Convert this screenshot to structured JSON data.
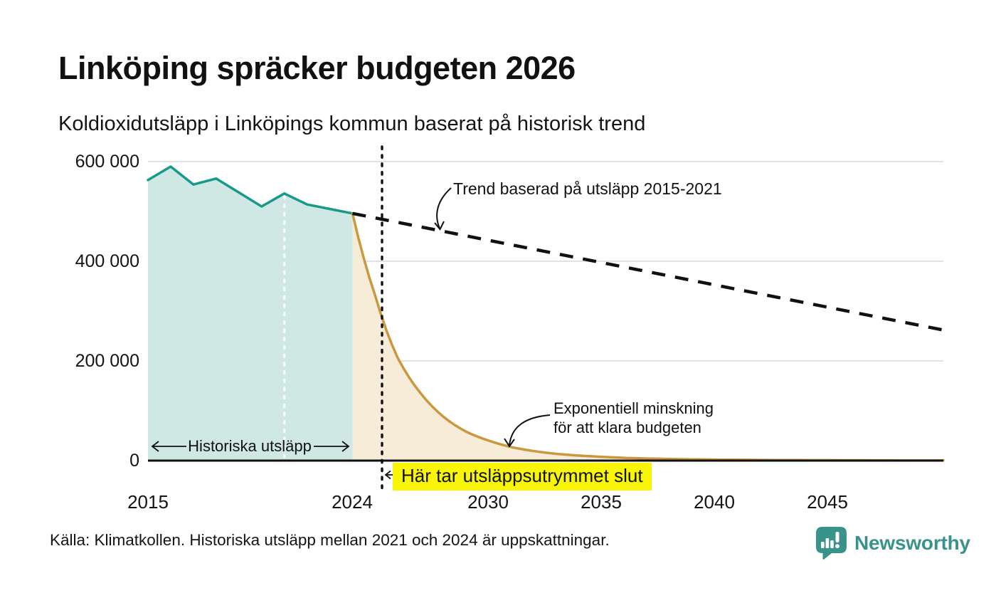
{
  "title": "Linköping spräcker budgeten 2026",
  "subtitle": "Koldioxidutsläpp i Linköpings kommun baserat på historisk trend",
  "source": "Källa: Klimatkollen. Historiska utsläpp mellan 2021 och 2024 är uppskattningar.",
  "brand": {
    "name": "Newsworthy"
  },
  "annotations": {
    "trend_label": "Trend baserad på utsläpp 2015-2021",
    "budget_label_line1": "Exponentiell minskning",
    "budget_label_line2": "för att klara budgeten",
    "historical_label": "Historiska utsläpp",
    "budget_end_label": "Här tar utsläppsutrymmet slut"
  },
  "y_axis": {
    "ticks": [
      "600 000",
      "400 000",
      "200 000",
      "0"
    ],
    "values": [
      600000,
      400000,
      200000,
      0
    ]
  },
  "x_axis": {
    "ticks": [
      "2015",
      "2024",
      "2030",
      "2035",
      "2040",
      "2045"
    ],
    "values": [
      2015,
      2024,
      2030,
      2035,
      2040,
      2045
    ]
  },
  "colors": {
    "historical_line": "#189a8b",
    "historical_fill": "#cfe8e4",
    "budget_line": "#c9983f",
    "budget_fill": "#f6ecd7",
    "trend_line": "#111111",
    "highlight": "#f8f506",
    "grid": "#e2e2e2",
    "axis": "#111111",
    "brand_teal": "#3a938b"
  },
  "chart_data": {
    "type": "area",
    "title": "Linköping spräcker budgeten 2026",
    "xlabel": "",
    "ylabel": "",
    "x_range": [
      2015,
      2050
    ],
    "ylim": [
      0,
      600000
    ],
    "grid": true,
    "legend_position": "none",
    "series": [
      {
        "name": "Historiska utsläpp",
        "type": "area-line",
        "x": [
          2015,
          2016,
          2017,
          2018,
          2019,
          2020,
          2021,
          2022,
          2023,
          2024
        ],
        "values": [
          563000,
          590000,
          554000,
          566000,
          538000,
          510000,
          536000,
          514000,
          505000,
          496000
        ]
      },
      {
        "name": "Trend baserad på utsläpp 2015-2021",
        "type": "dashed-line",
        "x": [
          2024,
          2050
        ],
        "values": [
          496000,
          262000
        ]
      },
      {
        "name": "Exponentiell minskning för att klara budgeten",
        "type": "area-line",
        "x": [
          2024,
          2025,
          2026,
          2027,
          2028,
          2029,
          2030,
          2031,
          2032,
          2033,
          2034,
          2035,
          2036,
          2037,
          2038,
          2039,
          2040,
          2041,
          2042,
          2043,
          2044,
          2045,
          2046,
          2047,
          2048,
          2049,
          2050
        ],
        "values": [
          496000,
          331000,
          205000,
          135000,
          88000,
          58000,
          40000,
          27000,
          19000,
          13500,
          10000,
          7500,
          5500,
          4200,
          3200,
          2500,
          2000,
          1600,
          1300,
          1100,
          900,
          800,
          700,
          600,
          500,
          450,
          400
        ]
      }
    ],
    "markers": {
      "estimate_divider_year": 2021,
      "budget_end_year": 2025.3
    }
  }
}
